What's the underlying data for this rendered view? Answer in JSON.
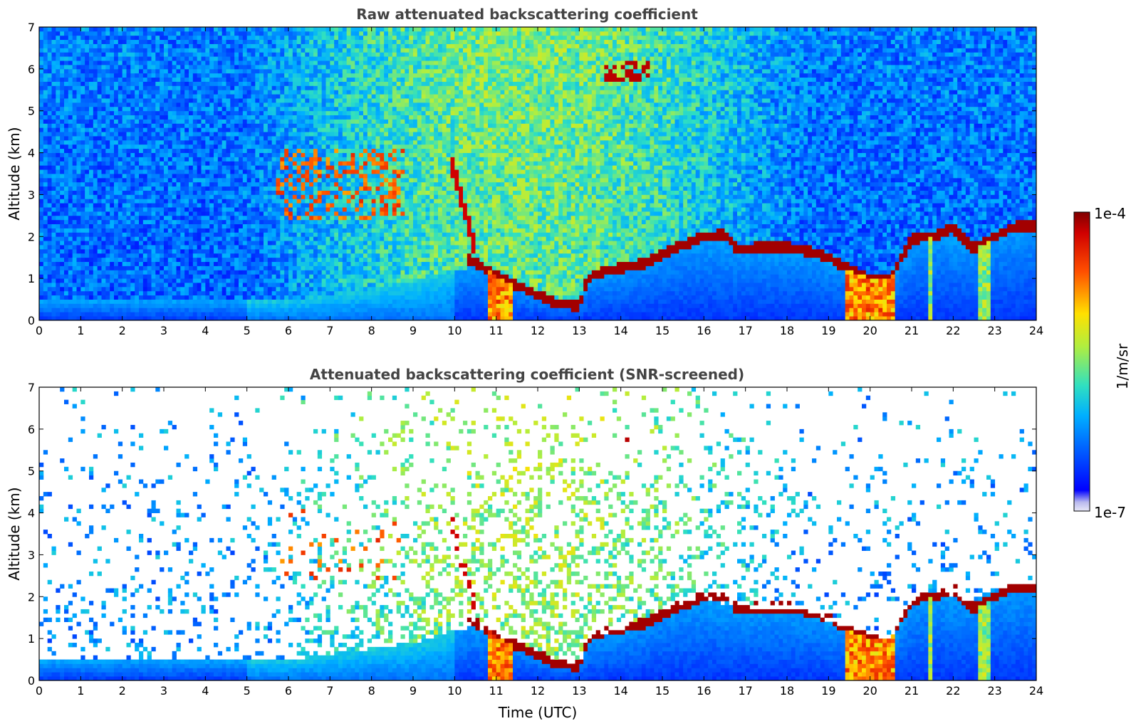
{
  "chart_data": [
    {
      "type": "heatmap",
      "title": "Raw attenuated backscattering coefficient",
      "xlabel": "",
      "ylabel": "Altitude (km)",
      "xlim": [
        0,
        24
      ],
      "ylim": [
        0,
        7
      ],
      "x_ticks": [
        "0",
        "1",
        "2",
        "3",
        "4",
        "5",
        "6",
        "7",
        "8",
        "9",
        "10",
        "11",
        "12",
        "13",
        "14",
        "15",
        "16",
        "17",
        "18",
        "19",
        "20",
        "21",
        "22",
        "23",
        "24"
      ],
      "y_ticks": [
        "0",
        "1",
        "2",
        "3",
        "4",
        "5",
        "6",
        "7"
      ],
      "screened": false
    },
    {
      "type": "heatmap",
      "title": "Attenuated backscattering coefficient (SNR-screened)",
      "xlabel": "Time (UTC)",
      "ylabel": "Altitude (km)",
      "xlim": [
        0,
        24
      ],
      "ylim": [
        0,
        7
      ],
      "x_ticks": [
        "0",
        "1",
        "2",
        "3",
        "4",
        "5",
        "6",
        "7",
        "8",
        "9",
        "10",
        "11",
        "12",
        "13",
        "14",
        "15",
        "16",
        "17",
        "18",
        "19",
        "20",
        "21",
        "22",
        "23",
        "24"
      ],
      "y_ticks": [
        "0",
        "1",
        "2",
        "3",
        "4",
        "5",
        "6",
        "7"
      ],
      "screened": true
    }
  ],
  "colorbar": {
    "label": "1/m/sr",
    "max_label": "1e-4",
    "min_label": "1e-7",
    "scale": "log",
    "colormap": "jet"
  }
}
